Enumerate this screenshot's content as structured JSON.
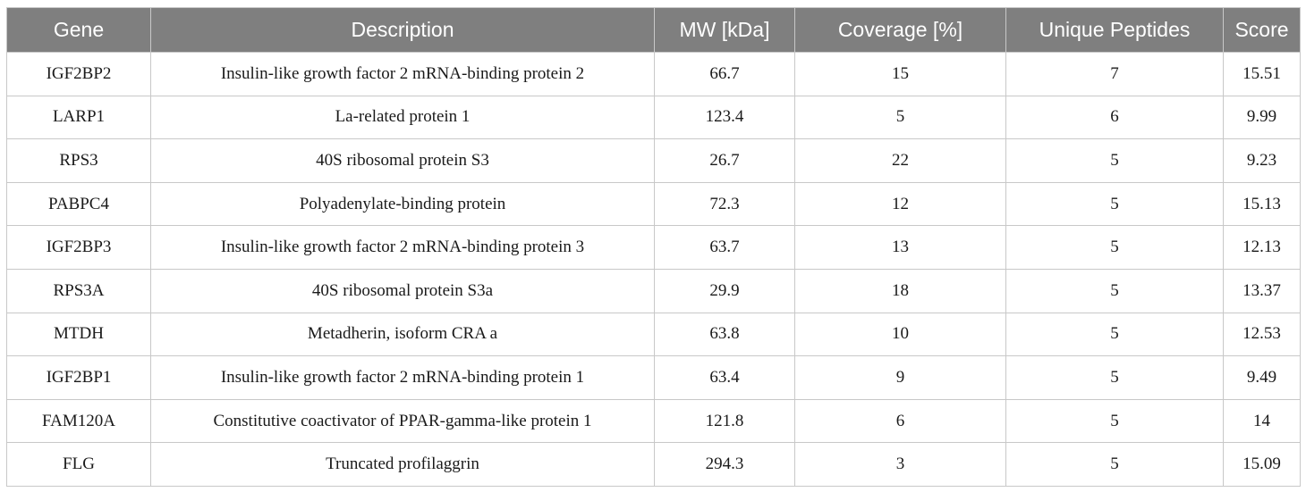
{
  "table": {
    "headers": [
      "Gene",
      "Description",
      "MW [kDa]",
      "Coverage [%]",
      "Unique Peptides",
      "Score"
    ],
    "rows": [
      [
        "IGF2BP2",
        "Insulin-like growth factor 2 mRNA-binding protein 2",
        "66.7",
        "15",
        "7",
        "15.51"
      ],
      [
        "LARP1",
        "La-related protein 1",
        "123.4",
        "5",
        "6",
        "9.99"
      ],
      [
        "RPS3",
        "40S ribosomal protein S3",
        "26.7",
        "22",
        "5",
        "9.23"
      ],
      [
        "PABPC4",
        "Polyadenylate-binding protein",
        "72.3",
        "12",
        "5",
        "15.13"
      ],
      [
        "IGF2BP3",
        "Insulin-like growth factor 2 mRNA-binding protein 3",
        "63.7",
        "13",
        "5",
        "12.13"
      ],
      [
        "RPS3A",
        "40S ribosomal protein S3a",
        "29.9",
        "18",
        "5",
        "13.37"
      ],
      [
        "MTDH",
        "Metadherin, isoform CRA a",
        "63.8",
        "10",
        "5",
        "12.53"
      ],
      [
        "IGF2BP1",
        "Insulin-like growth factor 2 mRNA-binding protein 1",
        "63.4",
        "9",
        "5",
        "9.49"
      ],
      [
        "FAM120A",
        "Constitutive coactivator of PPAR-gamma-like protein 1",
        "121.8",
        "6",
        "5",
        "14"
      ],
      [
        "FLG",
        "Truncated profilaggrin",
        "294.3",
        "3",
        "5",
        "15.09"
      ]
    ]
  }
}
